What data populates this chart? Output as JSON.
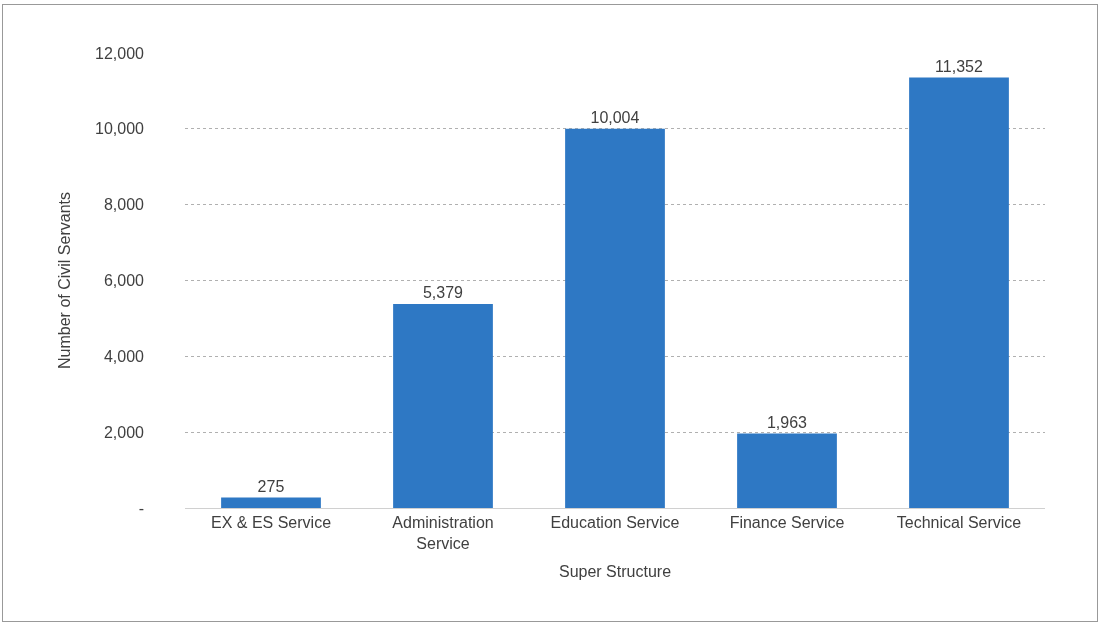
{
  "chart_data": {
    "type": "bar",
    "xlabel": "Super Structure",
    "ylabel": "Number of Civil Servants",
    "categories": [
      "EX & ES Service",
      "Administration Service",
      "Education Service",
      "Finance Service",
      "Technical Service"
    ],
    "values": [
      275,
      5379,
      10004,
      1963,
      11352
    ],
    "value_labels": [
      "275",
      "5,379",
      "10,004",
      "1,963",
      "11,352"
    ],
    "color": "#2e78c4",
    "ylim": [
      0,
      12000
    ],
    "yticks": [
      {
        "value": 0,
        "label": "-"
      },
      {
        "value": 2000,
        "label": "2,000"
      },
      {
        "value": 4000,
        "label": "4,000"
      },
      {
        "value": 6000,
        "label": "6,000"
      },
      {
        "value": 8000,
        "label": "8,000"
      },
      {
        "value": 10000,
        "label": "10,000"
      },
      {
        "value": 12000,
        "label": "12,000"
      }
    ],
    "grid": "y",
    "legend": false
  }
}
